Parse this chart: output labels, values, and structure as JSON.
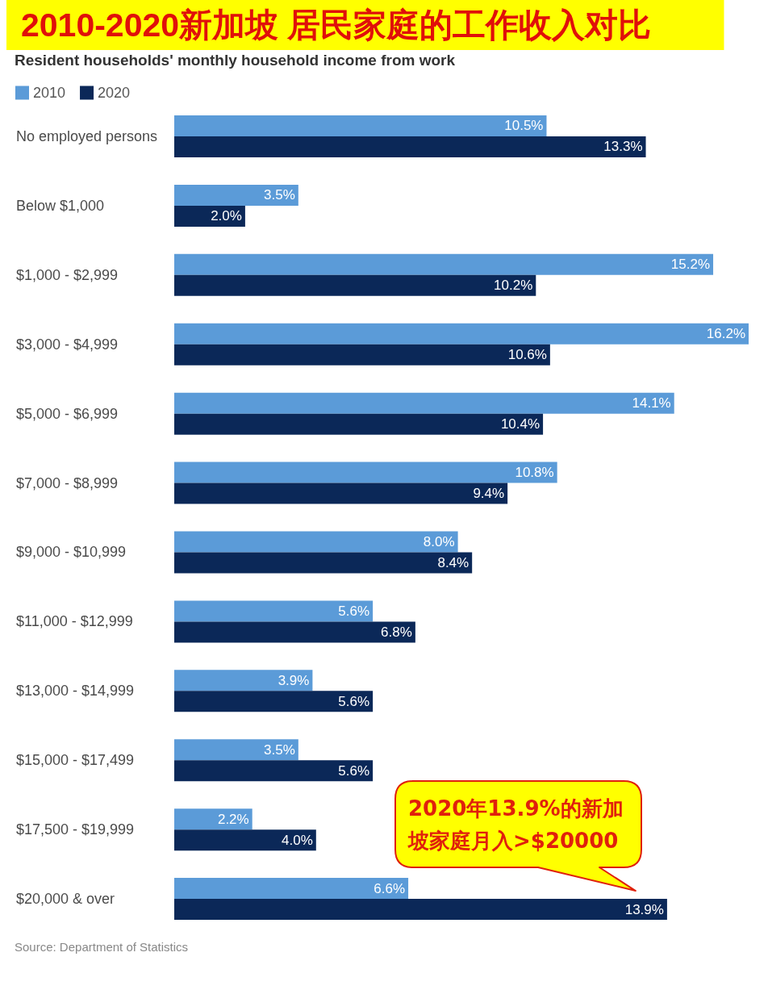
{
  "chart_data": {
    "type": "bar",
    "orientation": "horizontal",
    "title": "2010-2020新加坡 居民家庭的工作收入对比",
    "subtitle": "Resident households' monthly household income from work",
    "categories": [
      "No employed persons",
      "Below $1,000",
      "$1,000 - $2,999",
      "$3,000 - $4,999",
      "$5,000 - $6,999",
      "$7,000 - $8,999",
      "$9,000 - $10,999",
      "$11,000 - $12,999",
      "$13,000 - $14,999",
      "$15,000 - $17,499",
      "$17,500 - $19,999",
      "$20,000 & over"
    ],
    "series": [
      {
        "name": "2010",
        "color": "#5b9bd8",
        "values": [
          10.5,
          3.5,
          15.2,
          16.2,
          14.1,
          10.8,
          8.0,
          5.6,
          3.9,
          3.5,
          2.2,
          6.6
        ],
        "value_labels": [
          "10.5%",
          "3.5%",
          "15.2%",
          "16.2%",
          "14.1%",
          "10.8%",
          "8.0%",
          "5.6%",
          "3.9%",
          "3.5%",
          "2.2%",
          "6.6%"
        ]
      },
      {
        "name": "2020",
        "color": "#0b2858",
        "values": [
          13.3,
          2.0,
          10.2,
          10.6,
          10.4,
          9.4,
          8.4,
          6.8,
          5.6,
          5.6,
          4.0,
          13.9
        ],
        "value_labels": [
          "13.3%",
          "2.0%",
          "10.2%",
          "10.6%",
          "10.4%",
          "9.4%",
          "8.4%",
          "6.8%",
          "5.6%",
          "5.6%",
          "4.0%",
          "13.9%"
        ]
      }
    ],
    "legend": "top left",
    "annotations": [
      "2020年13.9%的新加坡家庭月入>$20000",
      "Source: Department of Statistics"
    ]
  }
}
